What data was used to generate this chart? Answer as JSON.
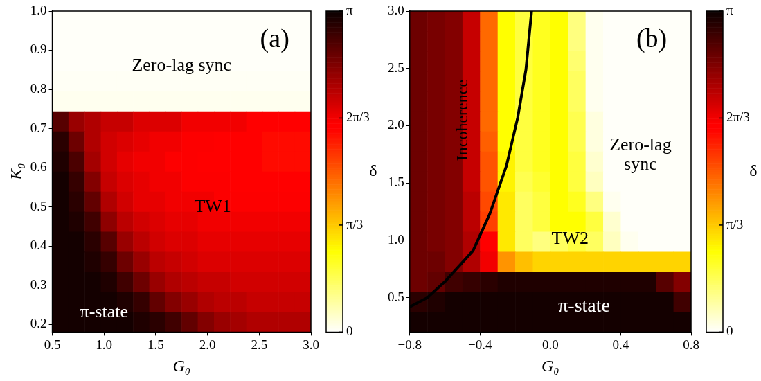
{
  "chart_data": [
    {
      "type": "heatmap",
      "xlabel": "G₀",
      "ylabel": "K₀",
      "clabel": "δ",
      "xlim": [
        0.5,
        3.0
      ],
      "xticks": [
        0.5,
        {
          "value": 1,
          "label": "1.0"
        },
        1.5,
        {
          "value": 2,
          "label": "2.0"
        },
        2.5,
        {
          "value": 3,
          "label": "3.0"
        }
      ],
      "ylim": [
        0.18,
        1.0
      ],
      "yticks": [
        0.2,
        0.3,
        0.4,
        0.5,
        0.6,
        0.7,
        0.8,
        0.9,
        {
          "value": 1,
          "label": "1.0"
        }
      ],
      "clim": [
        0,
        3.14159
      ],
      "cticks": [
        {
          "value": 0,
          "label": "0"
        },
        {
          "value": 1.0472,
          "label": "π/3"
        },
        {
          "value": 2.0944,
          "label": "2π/3"
        },
        {
          "value": 3.14159,
          "label": "π"
        }
      ],
      "cells": [
        [
          0.02,
          0.02,
          0.02,
          0.02,
          0.02,
          0.02,
          0.02,
          0.02,
          0.02,
          0.02,
          0.02,
          0.02,
          0.02,
          0.02,
          0.02,
          0.02
        ],
        [
          0.02,
          0.02,
          0.02,
          0.02,
          0.02,
          0.02,
          0.02,
          0.02,
          0.02,
          0.02,
          0.02,
          0.02,
          0.02,
          0.02,
          0.02,
          0.02
        ],
        [
          0.02,
          0.02,
          0.02,
          0.02,
          0.02,
          0.02,
          0.02,
          0.02,
          0.02,
          0.02,
          0.02,
          0.02,
          0.02,
          0.02,
          0.02,
          0.02
        ],
        [
          0.03,
          0.03,
          0.03,
          0.03,
          0.03,
          0.03,
          0.03,
          0.03,
          0.03,
          0.03,
          0.03,
          0.03,
          0.03,
          0.03,
          0.03,
          0.03
        ],
        [
          0.05,
          0.05,
          0.05,
          0.05,
          0.05,
          0.05,
          0.05,
          0.05,
          0.05,
          0.05,
          0.05,
          0.05,
          0.05,
          0.05,
          0.05,
          0.05
        ],
        [
          2.8,
          2.5,
          2.4,
          2.3,
          2.3,
          2.2,
          2.2,
          2.2,
          2.1,
          2.1,
          2.1,
          2.1,
          2.0,
          2.0,
          2.0,
          2.0
        ],
        [
          3.0,
          2.7,
          2.4,
          2.25,
          2.2,
          2.15,
          2.1,
          2.1,
          2.05,
          2.05,
          2.0,
          2.0,
          2.0,
          1.95,
          1.95,
          1.95
        ],
        [
          3.05,
          2.85,
          2.45,
          2.25,
          2.15,
          2.1,
          2.1,
          2.05,
          2.05,
          2.0,
          2.0,
          2.0,
          2.0,
          1.95,
          1.95,
          1.95
        ],
        [
          3.1,
          2.95,
          2.6,
          2.3,
          2.2,
          2.15,
          2.1,
          2.1,
          2.05,
          2.05,
          2.05,
          2.0,
          2.0,
          2.0,
          2.0,
          2.0
        ],
        [
          3.1,
          3.0,
          2.75,
          2.4,
          2.25,
          2.15,
          2.15,
          2.1,
          2.1,
          2.1,
          2.05,
          2.05,
          2.05,
          2.05,
          2.05,
          2.05
        ],
        [
          3.1,
          3.05,
          2.9,
          2.55,
          2.35,
          2.25,
          2.2,
          2.15,
          2.15,
          2.1,
          2.1,
          2.1,
          2.1,
          2.1,
          2.1,
          2.1
        ],
        [
          3.1,
          3.1,
          3.0,
          2.8,
          2.5,
          2.35,
          2.25,
          2.2,
          2.2,
          2.15,
          2.15,
          2.15,
          2.15,
          2.15,
          2.15,
          2.15
        ],
        [
          3.1,
          3.1,
          3.05,
          2.95,
          2.7,
          2.5,
          2.35,
          2.3,
          2.25,
          2.2,
          2.2,
          2.2,
          2.2,
          2.2,
          2.2,
          2.2
        ],
        [
          3.1,
          3.1,
          3.1,
          3.05,
          2.9,
          2.7,
          2.5,
          2.4,
          2.35,
          2.3,
          2.3,
          2.25,
          2.25,
          2.25,
          2.25,
          2.25
        ],
        [
          3.1,
          3.1,
          3.1,
          3.1,
          3.05,
          2.95,
          2.75,
          2.6,
          2.5,
          2.4,
          2.35,
          2.35,
          2.3,
          2.3,
          2.3,
          2.3
        ],
        [
          3.1,
          3.1,
          3.1,
          3.1,
          3.1,
          3.05,
          3.0,
          2.9,
          2.75,
          2.6,
          2.5,
          2.45,
          2.4,
          2.4,
          2.4,
          2.4
        ]
      ],
      "annotations": [
        "(a)",
        "Zero-lag sync",
        "TW1",
        "π-state"
      ]
    },
    {
      "type": "heatmap",
      "xlabel": "G₀",
      "clabel": "δ",
      "xlim": [
        -0.8,
        0.8
      ],
      "xticks": [
        {
          "value": -0.8,
          "label": "−0.8"
        },
        {
          "value": -0.4,
          "label": "−0.4"
        },
        {
          "value": 0,
          "label": "0.0"
        },
        0.4,
        0.8
      ],
      "ylim": [
        0.2,
        3.0
      ],
      "yticks": [
        0.5,
        {
          "value": 1,
          "label": "1.0"
        },
        1.5,
        {
          "value": 2,
          "label": "2.0"
        },
        2.5,
        {
          "value": 3,
          "label": "3.0"
        }
      ],
      "clim": [
        0,
        3.14159
      ],
      "cticks": [
        {
          "value": 0,
          "label": "0"
        },
        {
          "value": 1.0472,
          "label": "π/3"
        },
        {
          "value": 2.0944,
          "label": "2π/3"
        },
        {
          "value": 3.14159,
          "label": "π"
        }
      ],
      "cells": [
        [
          2.7,
          2.65,
          2.6,
          2.3,
          1.5,
          0.8,
          0.6,
          0.7,
          0.8,
          0.4,
          0.05,
          0.02,
          0.02,
          0.02,
          0.02,
          0.02
        ],
        [
          2.7,
          2.65,
          2.6,
          2.3,
          1.5,
          0.8,
          0.6,
          0.7,
          0.8,
          0.4,
          0.05,
          0.02,
          0.02,
          0.02,
          0.02,
          0.02
        ],
        [
          2.7,
          2.65,
          2.6,
          2.3,
          1.5,
          0.8,
          0.6,
          0.7,
          0.8,
          0.45,
          0.05,
          0.02,
          0.02,
          0.02,
          0.02,
          0.02
        ],
        [
          2.7,
          2.65,
          2.6,
          2.3,
          1.5,
          0.8,
          0.6,
          0.7,
          0.8,
          0.5,
          0.05,
          0.02,
          0.02,
          0.02,
          0.02,
          0.02
        ],
        [
          2.7,
          2.65,
          2.6,
          2.3,
          1.5,
          0.8,
          0.6,
          0.7,
          0.8,
          0.5,
          0.05,
          0.02,
          0.02,
          0.02,
          0.02,
          0.02
        ],
        [
          2.7,
          2.65,
          2.6,
          2.3,
          1.5,
          0.8,
          0.6,
          0.7,
          0.8,
          0.55,
          0.1,
          0.02,
          0.02,
          0.02,
          0.02,
          0.02
        ],
        [
          2.7,
          2.65,
          2.6,
          2.3,
          1.55,
          0.8,
          0.6,
          0.7,
          0.8,
          0.55,
          0.1,
          0.02,
          0.02,
          0.02,
          0.02,
          0.02
        ],
        [
          2.7,
          2.65,
          2.6,
          2.3,
          1.6,
          0.85,
          0.6,
          0.7,
          0.8,
          0.6,
          0.15,
          0.02,
          0.02,
          0.02,
          0.02,
          0.02
        ],
        [
          2.7,
          2.65,
          2.6,
          2.3,
          1.6,
          0.85,
          0.55,
          0.65,
          0.8,
          0.6,
          0.2,
          0.02,
          0.02,
          0.02,
          0.02,
          0.02
        ],
        [
          2.7,
          2.65,
          2.6,
          2.35,
          1.65,
          0.9,
          0.5,
          0.6,
          0.8,
          0.7,
          0.4,
          0.05,
          0.02,
          0.02,
          0.02,
          0.02
        ],
        [
          2.7,
          2.65,
          2.6,
          2.35,
          1.7,
          0.9,
          0.5,
          0.6,
          0.8,
          0.8,
          0.6,
          0.15,
          0.02,
          0.02,
          0.02,
          0.02
        ],
        [
          2.7,
          2.65,
          2.6,
          2.4,
          2.0,
          0.9,
          0.5,
          0.4,
          0.5,
          0.6,
          0.5,
          0.2,
          0.05,
          0.02,
          0.02,
          0.02
        ],
        [
          2.7,
          2.7,
          2.6,
          2.4,
          2.1,
          1.3,
          1.1,
          1.0,
          1.0,
          1.0,
          1.0,
          1.0,
          1.0,
          1.0,
          1.0,
          1.0
        ],
        [
          2.7,
          2.75,
          2.9,
          2.95,
          3.0,
          3.05,
          3.05,
          3.05,
          3.05,
          3.05,
          3.05,
          3.05,
          3.05,
          3.05,
          2.8,
          2.6
        ],
        [
          3.0,
          3.05,
          3.1,
          3.1,
          3.1,
          3.1,
          3.1,
          3.1,
          3.1,
          3.1,
          3.1,
          3.1,
          3.1,
          3.1,
          3.1,
          2.9
        ],
        [
          3.1,
          3.1,
          3.1,
          3.1,
          3.1,
          3.1,
          3.1,
          3.1,
          3.1,
          3.1,
          3.1,
          3.1,
          3.1,
          3.1,
          3.1,
          3.1
        ]
      ],
      "series": [
        {
          "type": "line",
          "color": "#000000",
          "x": [
            -0.8,
            -0.7,
            -0.6,
            -0.44,
            -0.345,
            -0.25,
            -0.186,
            -0.139,
            -0.107
          ],
          "values": [
            0.42,
            0.5,
            0.64,
            0.91,
            1.23,
            1.65,
            2.07,
            2.49,
            3.0
          ]
        }
      ],
      "annotations": [
        "(b)",
        "Incoherence",
        "Zero-lag\nsync",
        "TW2",
        "π-state"
      ]
    }
  ]
}
